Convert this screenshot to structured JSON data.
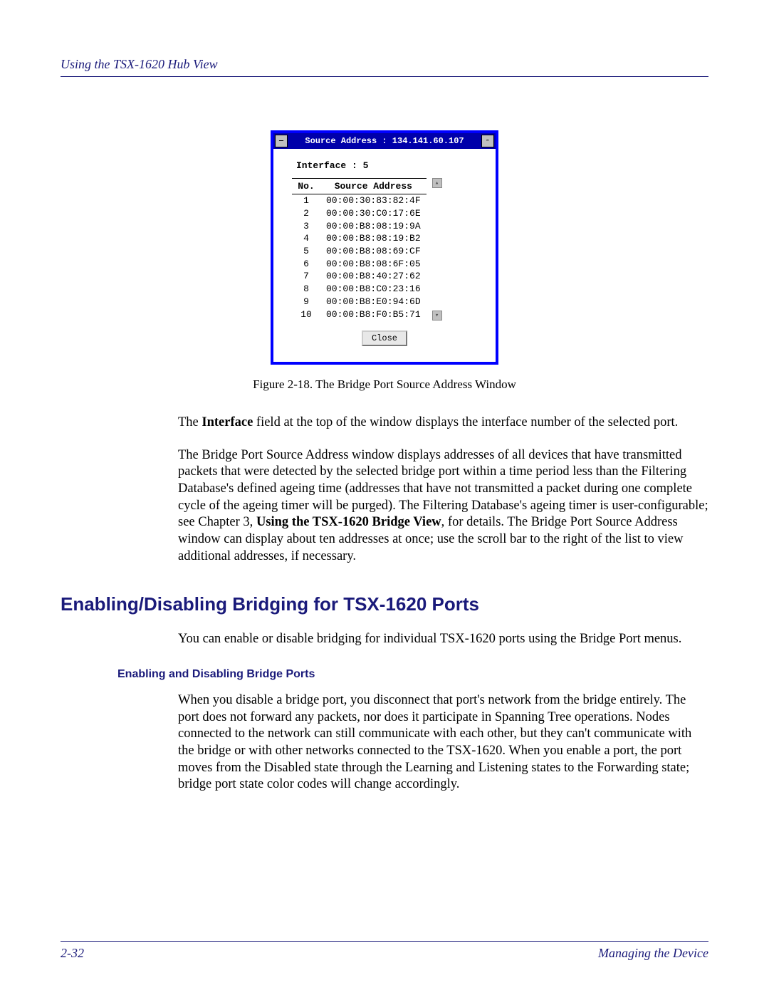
{
  "header": {
    "text": "Using the TSX-1620 Hub View"
  },
  "window": {
    "title": "Source Address : 134.141.60.107",
    "interface_label": "Interface :",
    "interface_value": "5",
    "col_no": "No.",
    "col_addr": "Source Address",
    "rows": [
      {
        "n": "1",
        "addr": "00:00:30:83:82:4F"
      },
      {
        "n": "2",
        "addr": "00:00:30:C0:17:6E"
      },
      {
        "n": "3",
        "addr": "00:00:B8:08:19:9A"
      },
      {
        "n": "4",
        "addr": "00:00:B8:08:19:B2"
      },
      {
        "n": "5",
        "addr": "00:00:B8:08:69:CF"
      },
      {
        "n": "6",
        "addr": "00:00:B8:08:6F:05"
      },
      {
        "n": "7",
        "addr": "00:00:B8:40:27:62"
      },
      {
        "n": "8",
        "addr": "00:00:B8:C0:23:16"
      },
      {
        "n": "9",
        "addr": "00:00:B8:E0:94:6D"
      },
      {
        "n": "10",
        "addr": "00:00:B8:F0:B5:71"
      }
    ],
    "close_label": "Close"
  },
  "figure_caption": "Figure 2-18. The Bridge Port Source Address Window",
  "para1_a": "The ",
  "para1_b": "Interface",
  "para1_c": " field at the top of the window displays the interface number of the selected port.",
  "para2_a": "The Bridge Port Source Address window displays addresses of all devices that have transmitted packets that were detected by the selected bridge port within a time period less than the Filtering Database's defined ageing time (addresses that have not transmitted a packet during one complete cycle of the ageing timer will be purged). The Filtering Database's ageing timer is user-configurable; see Chapter 3, ",
  "para2_b": "Using the TSX-1620 Bridge View",
  "para2_c": ", for details. The Bridge Port Source Address window can display about ten addresses at once; use the scroll bar to the right of the list to view additional addresses, if necessary.",
  "heading": "Enabling/Disabling Bridging for TSX-1620 Ports",
  "para3": "You can enable or disable bridging for individual TSX-1620 ports using the Bridge Port menus.",
  "subheading": "Enabling and Disabling Bridge Ports",
  "para4": "When you disable a bridge port, you disconnect that port's network from the bridge entirely. The port does not forward any packets, nor does it participate in Spanning Tree operations. Nodes connected to the network can still communicate with each other, but they can't communicate with the bridge or with other networks connected to the TSX-1620. When you enable a port, the port moves from the Disabled state through the Learning and Listening states to the Forwarding state; bridge port state color codes will change accordingly.",
  "footer": {
    "page": "2-32",
    "section": "Managing the Device"
  },
  "colors": {
    "accent": "#1a1a7a",
    "window_border": "#0000ff",
    "titlebar_bg": "#0000aa"
  }
}
